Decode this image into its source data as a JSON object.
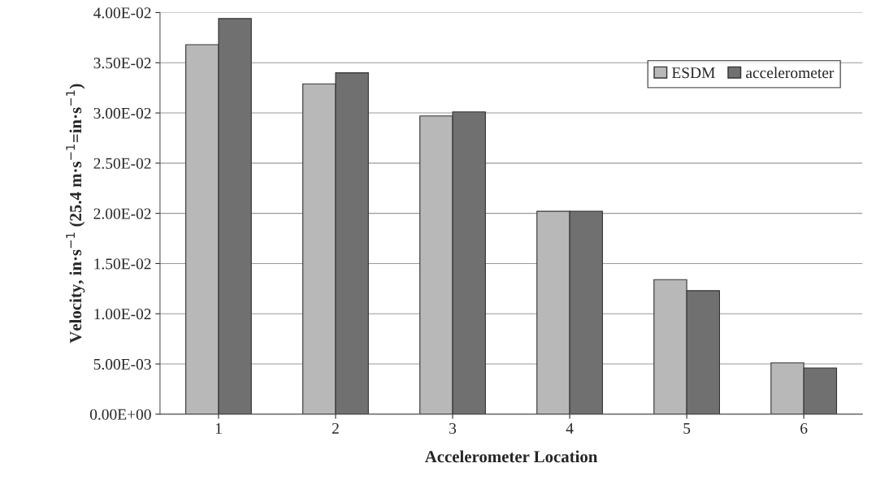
{
  "chart_data": {
    "type": "bar",
    "xlabel": "Accelerometer Location",
    "ylabel": "Velocity, in·s$^{−1}$ (25.4 m·s$^{−1}$=in·s$^{−1}$)",
    "categories": [
      "1",
      "2",
      "3",
      "4",
      "5",
      "6"
    ],
    "series": [
      {
        "name": "ESDM",
        "color": "#b8b8b8",
        "values": [
          0.0368,
          0.0329,
          0.0297,
          0.0202,
          0.0134,
          0.0051
        ]
      },
      {
        "name": "accelerometer",
        "color": "#707070",
        "values": [
          0.0394,
          0.034,
          0.0301,
          0.0202,
          0.0123,
          0.0046
        ]
      }
    ],
    "ylim": [
      0,
      0.04
    ],
    "yticks": [
      {
        "value": 0,
        "label": "0.00E+00"
      },
      {
        "value": 0.005,
        "label": "5.00E-03"
      },
      {
        "value": 0.01,
        "label": "1.00E-02"
      },
      {
        "value": 0.015,
        "label": "1.50E-02"
      },
      {
        "value": 0.02,
        "label": "2.00E-02"
      },
      {
        "value": 0.025,
        "label": "2.50E-02"
      },
      {
        "value": 0.03,
        "label": "3.00E-02"
      },
      {
        "value": 0.035,
        "label": "3.50E-02"
      },
      {
        "value": 0.04,
        "label": "4.00E-02"
      }
    ],
    "grid": "y",
    "legend": "top right"
  }
}
